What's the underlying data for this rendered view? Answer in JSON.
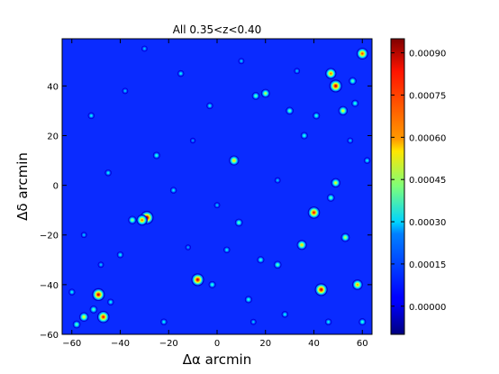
{
  "chart_data": {
    "type": "heatmap",
    "title": "All 0.35<z<0.40",
    "xlabel": "Δα arcmin",
    "ylabel": "Δδ arcmin",
    "xlim": [
      -64,
      64
    ],
    "ylim": [
      -60,
      59
    ],
    "x_ticks": [
      -60,
      -40,
      -20,
      0,
      20,
      40,
      60
    ],
    "y_ticks": [
      -60,
      -40,
      -20,
      0,
      20,
      40
    ],
    "x_tick_labels": [
      "−60",
      "−40",
      "−20",
      "0",
      "20",
      "40",
      "60"
    ],
    "y_tick_labels": [
      "−60",
      "−40",
      "−20",
      "0",
      "20",
      "40"
    ],
    "colorbar": {
      "min": -0.0001,
      "max": 0.00095,
      "colormap": "jet",
      "ticks": [
        0.0,
        0.00015,
        0.0003,
        0.00045,
        0.0006,
        0.00075,
        0.0009
      ],
      "tick_labels": [
        "0.00000",
        "0.00015",
        "0.00030",
        "0.00045",
        "0.00060",
        "0.00075",
        "0.00090"
      ]
    },
    "background_level": -2e-05,
    "peaks": [
      {
        "x": -29,
        "y": -13,
        "v": 0.0009
      },
      {
        "x": -31,
        "y": -14,
        "v": 0.0007
      },
      {
        "x": -35,
        "y": -14,
        "v": 0.00045
      },
      {
        "x": -49,
        "y": -44,
        "v": 0.00085
      },
      {
        "x": -47,
        "y": -53,
        "v": 0.0008
      },
      {
        "x": -55,
        "y": -53,
        "v": 0.00055
      },
      {
        "x": -51,
        "y": -50,
        "v": 0.0004
      },
      {
        "x": -58,
        "y": -56,
        "v": 0.0004
      },
      {
        "x": -44,
        "y": -47,
        "v": 0.0003
      },
      {
        "x": -8,
        "y": -38,
        "v": 0.00085
      },
      {
        "x": -2,
        "y": -40,
        "v": 0.00035
      },
      {
        "x": 43,
        "y": -42,
        "v": 0.00085
      },
      {
        "x": 40,
        "y": -11,
        "v": 0.0008
      },
      {
        "x": 49,
        "y": 40,
        "v": 0.00085
      },
      {
        "x": 47,
        "y": 45,
        "v": 0.0007
      },
      {
        "x": 60,
        "y": 53,
        "v": 0.00075
      },
      {
        "x": 56,
        "y": 42,
        "v": 0.0004
      },
      {
        "x": 52,
        "y": 30,
        "v": 0.00055
      },
      {
        "x": 57,
        "y": 33,
        "v": 0.00035
      },
      {
        "x": 49,
        "y": 1,
        "v": 0.00055
      },
      {
        "x": 47,
        "y": -5,
        "v": 0.0004
      },
      {
        "x": 7,
        "y": 10,
        "v": 0.0006
      },
      {
        "x": 20,
        "y": 37,
        "v": 0.0005
      },
      {
        "x": 16,
        "y": 36,
        "v": 0.0004
      },
      {
        "x": 35,
        "y": -24,
        "v": 0.0006
      },
      {
        "x": 58,
        "y": -40,
        "v": 0.00065
      },
      {
        "x": 53,
        "y": -21,
        "v": 0.0005
      },
      {
        "x": 25,
        "y": -32,
        "v": 0.0004
      },
      {
        "x": 18,
        "y": -30,
        "v": 0.00035
      },
      {
        "x": 13,
        "y": -46,
        "v": 0.00035
      },
      {
        "x": 9,
        "y": -15,
        "v": 0.0004
      },
      {
        "x": 4,
        "y": -26,
        "v": 0.0003
      },
      {
        "x": 36,
        "y": 20,
        "v": 0.00035
      },
      {
        "x": 30,
        "y": 30,
        "v": 0.0004
      },
      {
        "x": 41,
        "y": 28,
        "v": 0.00035
      },
      {
        "x": -3,
        "y": 32,
        "v": 0.0003
      },
      {
        "x": -15,
        "y": 45,
        "v": 0.0003
      },
      {
        "x": -25,
        "y": 12,
        "v": 0.00035
      },
      {
        "x": -18,
        "y": -2,
        "v": 0.0003
      },
      {
        "x": -45,
        "y": 5,
        "v": 0.0003
      },
      {
        "x": -52,
        "y": 28,
        "v": 0.0003
      },
      {
        "x": -38,
        "y": 38,
        "v": 0.00025
      },
      {
        "x": -60,
        "y": -43,
        "v": 0.0003
      },
      {
        "x": -40,
        "y": -28,
        "v": 0.0003
      },
      {
        "x": -22,
        "y": -55,
        "v": 0.0003
      },
      {
        "x": 28,
        "y": -52,
        "v": 0.0003
      },
      {
        "x": 46,
        "y": -55,
        "v": 0.0003
      },
      {
        "x": 60,
        "y": -55,
        "v": 0.00035
      },
      {
        "x": 62,
        "y": 10,
        "v": 0.0003
      },
      {
        "x": 25,
        "y": 2,
        "v": 0.00025
      },
      {
        "x": 10,
        "y": 50,
        "v": 0.00025
      },
      {
        "x": -30,
        "y": 55,
        "v": 0.00025
      },
      {
        "x": 33,
        "y": 46,
        "v": 0.00025
      },
      {
        "x": -10,
        "y": 18,
        "v": 0.0002
      },
      {
        "x": 0,
        "y": -8,
        "v": 0.00025
      },
      {
        "x": -55,
        "y": -20,
        "v": 0.00025
      },
      {
        "x": 15,
        "y": -55,
        "v": 0.00025
      },
      {
        "x": -12,
        "y": -25,
        "v": 0.00022
      },
      {
        "x": 55,
        "y": 18,
        "v": 0.00025
      },
      {
        "x": -48,
        "y": -32,
        "v": 0.00025
      }
    ]
  }
}
